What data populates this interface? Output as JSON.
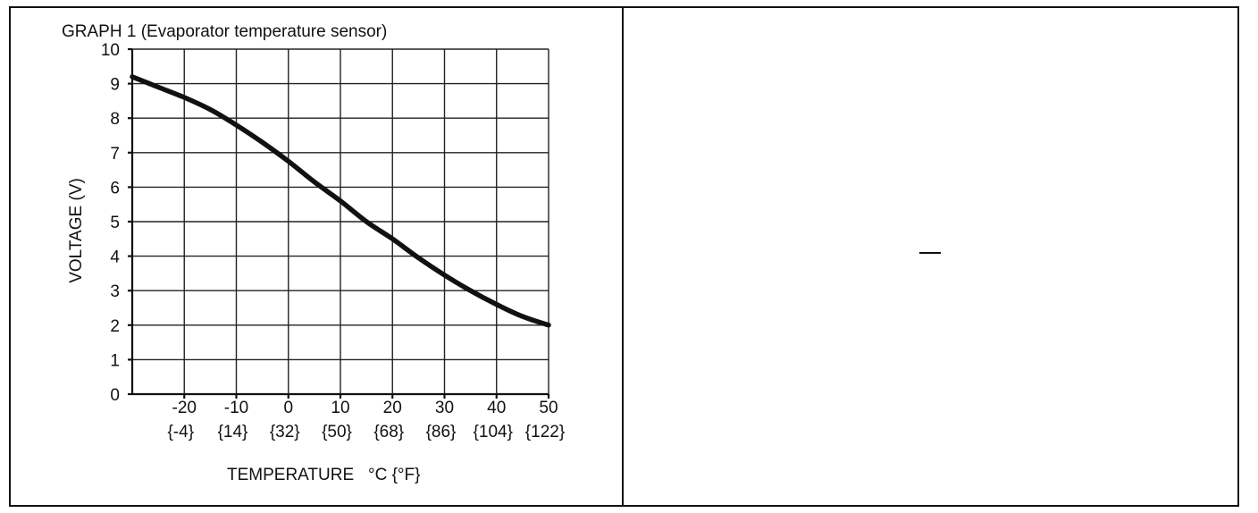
{
  "chart_data": {
    "type": "line",
    "title": "GRAPH 1 (Evaporator temperature sensor)",
    "xlabel": "TEMPERATURE   °C {°F}",
    "ylabel": "VOLTAGE (V)",
    "xlim": [
      -30,
      50
    ],
    "ylim": [
      0,
      10
    ],
    "grid": true,
    "x_ticks": [
      -20,
      -10,
      0,
      10,
      20,
      30,
      40,
      50
    ],
    "x_tick_labels": [
      "-20",
      "-10",
      "0",
      "10",
      "20",
      "30",
      "40",
      "50"
    ],
    "x_tick_labels_f": [
      "{-4}",
      "{14}",
      "{32}",
      "{50}",
      "{68}",
      "{86}",
      "{104}",
      "{122}"
    ],
    "y_ticks": [
      0,
      1,
      2,
      3,
      4,
      5,
      6,
      7,
      8,
      9,
      10
    ],
    "y_tick_labels": [
      "0",
      "1",
      "2",
      "3",
      "4",
      "5",
      "6",
      "7",
      "8",
      "9",
      "10"
    ],
    "series": [
      {
        "x": [
          -30,
          -25,
          -20,
          -15,
          -10,
          -5,
          0,
          5,
          10,
          15,
          20,
          25,
          30,
          35,
          40,
          45,
          50
        ],
        "y": [
          9.2,
          8.9,
          8.6,
          8.25,
          7.8,
          7.3,
          6.75,
          6.15,
          5.6,
          5.0,
          4.5,
          3.95,
          3.45,
          3.0,
          2.6,
          2.25,
          2.0
        ]
      }
    ]
  },
  "right_panel": {
    "mark": "—"
  }
}
